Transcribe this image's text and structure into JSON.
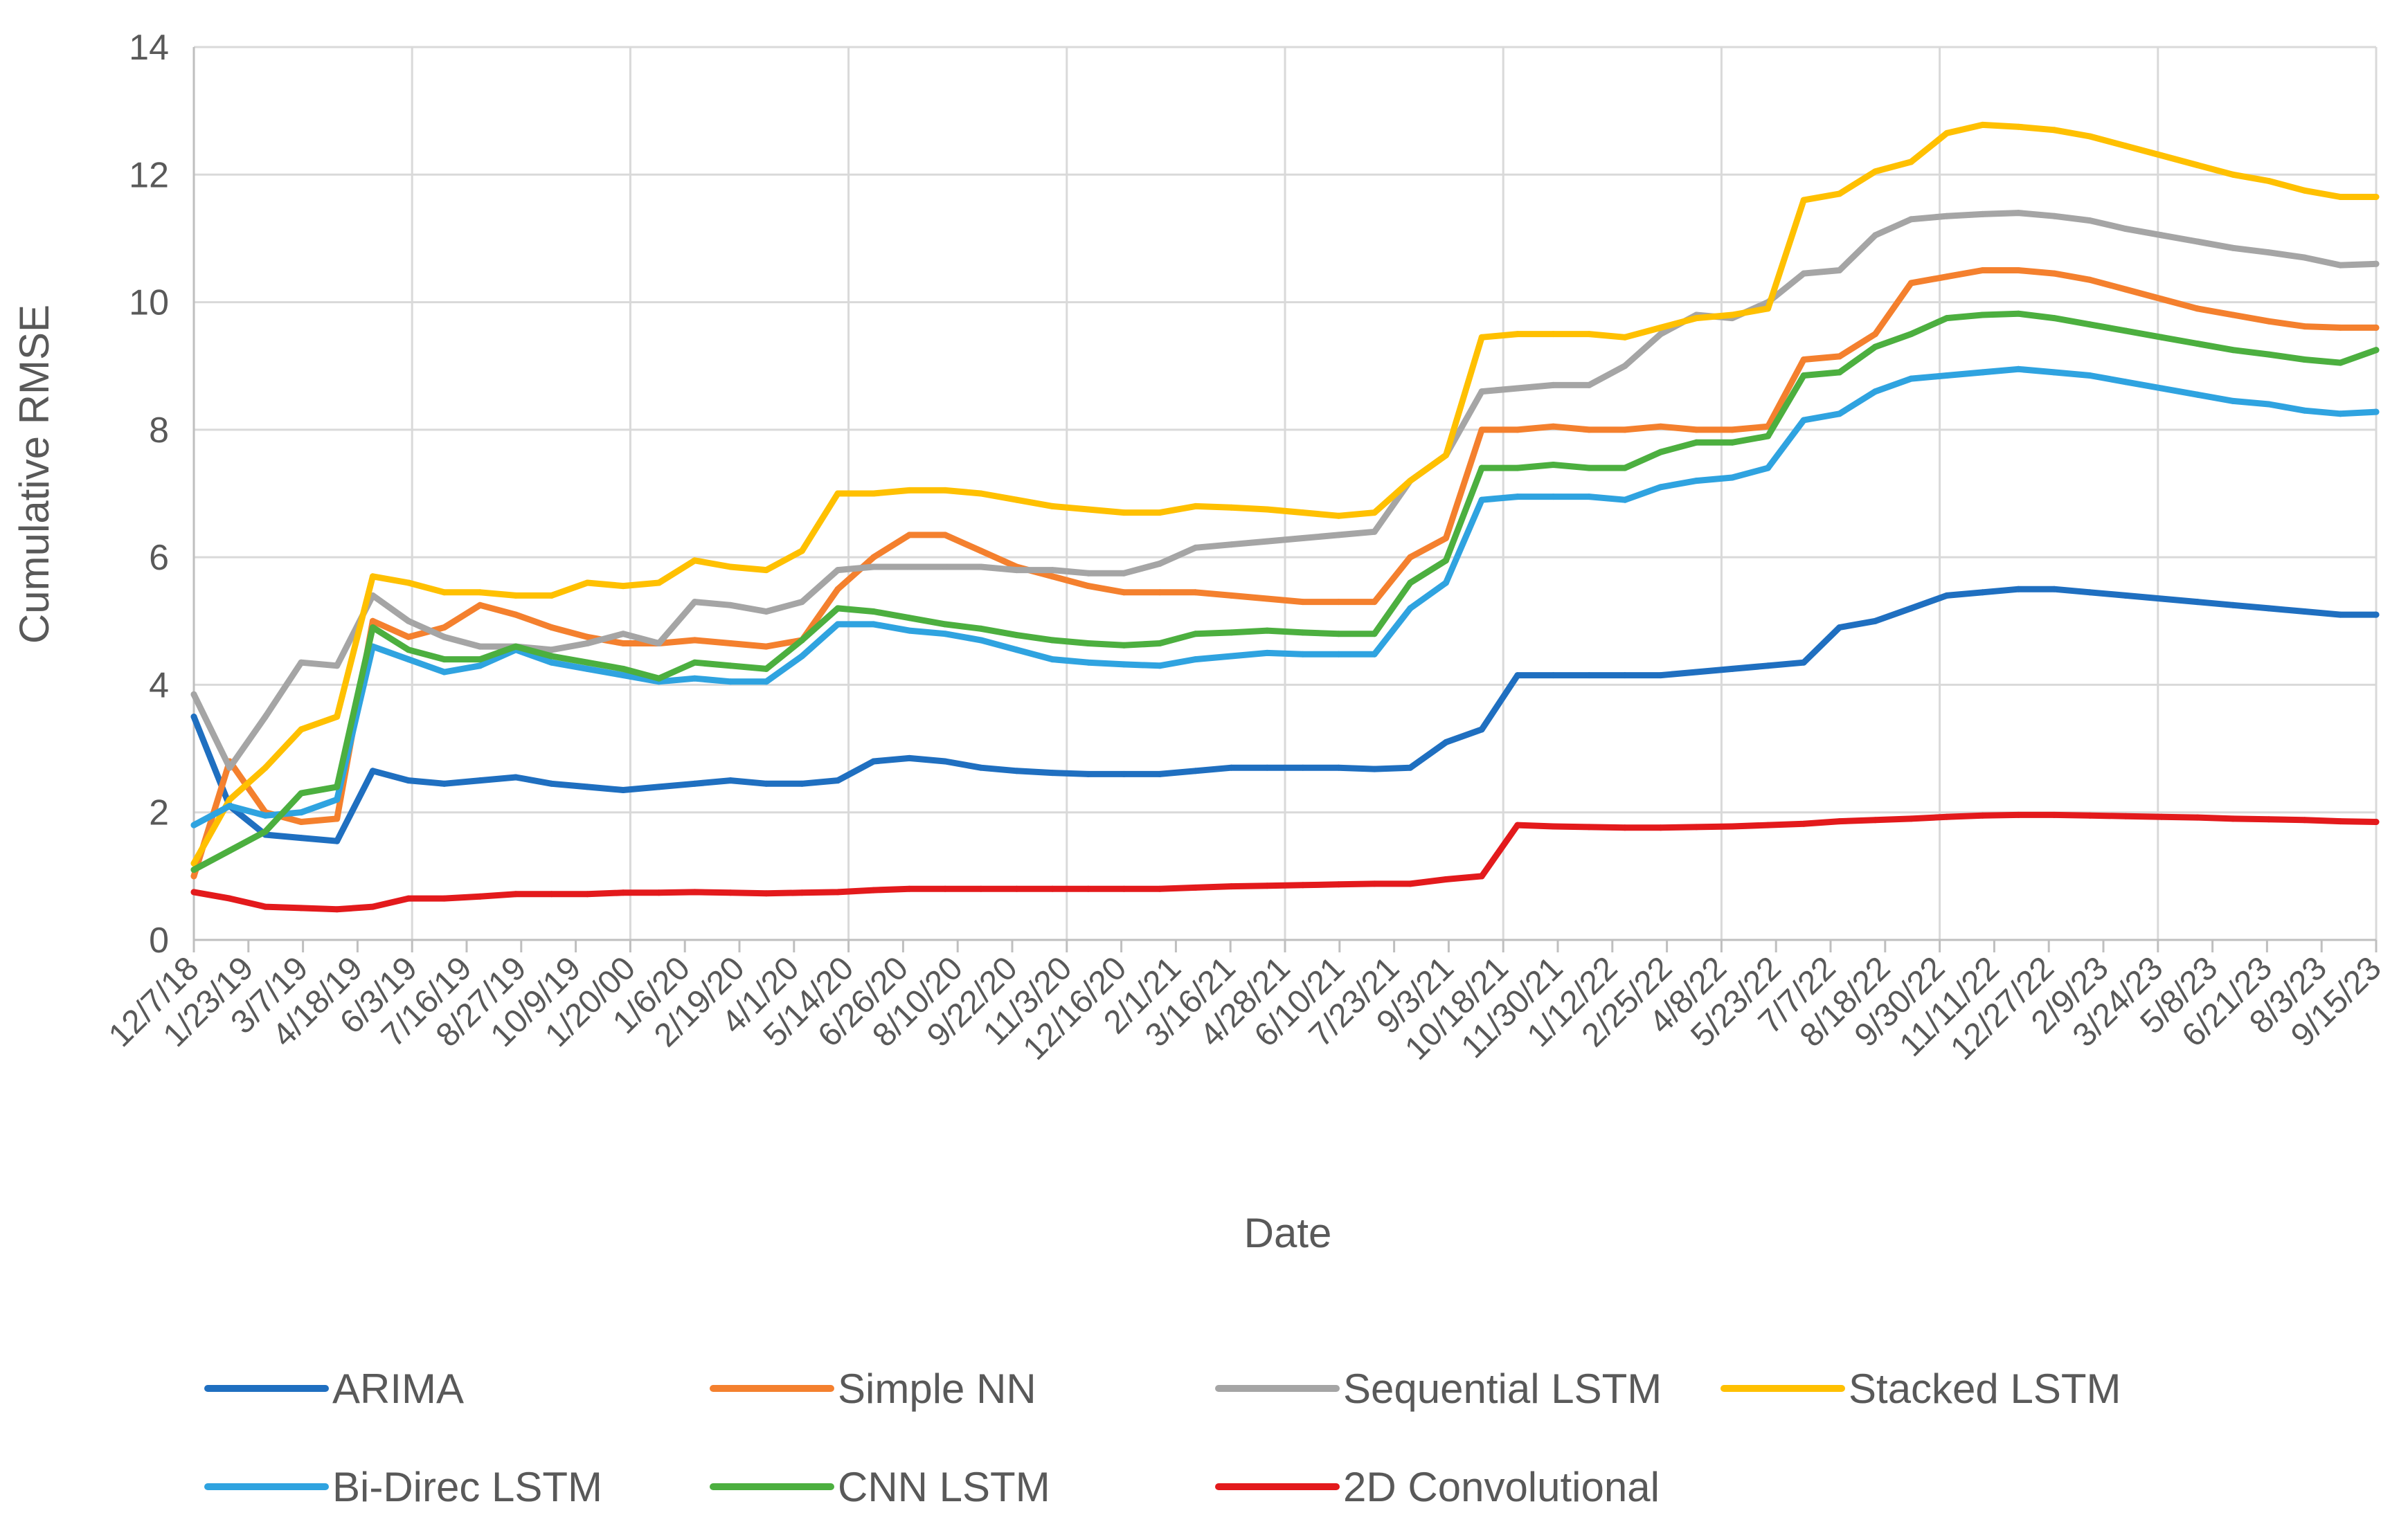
{
  "chart_data": {
    "type": "line",
    "title": "",
    "xlabel": "Date",
    "ylabel": "Cumulative RMSE",
    "ylim": [
      0,
      14
    ],
    "yticks": [
      "0",
      "2",
      "4",
      "6",
      "8",
      "10",
      "12",
      "14"
    ],
    "grid": true,
    "legend": "bottom",
    "x_tick_labels": [
      "12/7/18",
      "1/23/19",
      "3/7/19",
      "4/18/19",
      "6/3/19",
      "7/16/19",
      "8/27/19",
      "10/9/19",
      "1/20/00",
      "1/6/20",
      "2/19/20",
      "4/1/20",
      "5/14/20",
      "6/26/20",
      "8/10/20",
      "9/22/20",
      "11/3/20",
      "12/16/20",
      "2/1/21",
      "3/16/21",
      "4/28/21",
      "6/10/21",
      "7/23/21",
      "9/3/21",
      "10/18/21",
      "11/30/21",
      "1/12/22",
      "2/25/22",
      "4/8/22",
      "5/23/22",
      "7/7/22",
      "8/18/22",
      "9/30/22",
      "11/11/22",
      "12/27/22",
      "2/9/23",
      "3/24/23",
      "5/8/23",
      "6/21/23",
      "8/3/23",
      "9/15/23"
    ],
    "x": [
      "12/7/18",
      "12/21/18",
      "1/23/19",
      "2/14/19",
      "3/7/19",
      "3/28/19",
      "4/18/19",
      "5/10/19",
      "6/3/19",
      "6/25/19",
      "7/16/19",
      "8/6/19",
      "8/27/19",
      "9/18/19",
      "10/9/19",
      "11/15/19",
      "1/20/00",
      "1/6/20",
      "1/28/20",
      "2/19/20",
      "3/10/20",
      "4/1/20",
      "5/14/20",
      "6/26/20",
      "8/10/20",
      "9/22/20",
      "11/3/20",
      "12/16/20",
      "2/1/21",
      "3/16/21",
      "4/28/21",
      "6/10/21",
      "7/23/21",
      "8/13/21",
      "9/3/21",
      "9/25/21",
      "10/18/21",
      "11/9/21",
      "11/30/21",
      "12/21/21",
      "1/12/22",
      "2/25/22",
      "3/18/22",
      "4/8/22",
      "4/30/22",
      "5/23/22",
      "6/14/22",
      "7/7/22",
      "7/28/22",
      "8/18/22",
      "9/8/22",
      "9/30/22",
      "10/20/22",
      "11/11/22",
      "12/27/22",
      "2/9/23",
      "3/24/23",
      "5/8/23",
      "6/21/23",
      "8/3/23",
      "9/15/23",
      "10/5/23"
    ],
    "series": [
      {
        "name": "ARIMA",
        "color": "#1f6fc0",
        "values": [
          3.5,
          2.1,
          1.65,
          1.6,
          1.55,
          2.65,
          2.5,
          2.45,
          2.5,
          2.55,
          2.45,
          2.4,
          2.35,
          2.4,
          2.45,
          2.5,
          2.45,
          2.45,
          2.5,
          2.8,
          2.85,
          2.8,
          2.7,
          2.65,
          2.62,
          2.6,
          2.6,
          2.6,
          2.65,
          2.7,
          2.7,
          2.7,
          2.7,
          2.68,
          2.7,
          3.1,
          3.3,
          4.15,
          4.15,
          4.15,
          4.15,
          4.15,
          4.2,
          4.25,
          4.3,
          4.35,
          4.9,
          5.0,
          5.2,
          5.4,
          5.45,
          5.5,
          5.5,
          5.45,
          5.4,
          5.35,
          5.3,
          5.25,
          5.2,
          5.15,
          5.1,
          5.1
        ]
      },
      {
        "name": "Simple NN",
        "color": "#f4802e",
        "values": [
          1.0,
          2.8,
          2.0,
          1.85,
          1.9,
          5.0,
          4.75,
          4.9,
          5.25,
          5.1,
          4.9,
          4.75,
          4.65,
          4.65,
          4.7,
          4.65,
          4.6,
          4.7,
          5.5,
          6.0,
          6.35,
          6.35,
          6.1,
          5.85,
          5.7,
          5.55,
          5.45,
          5.45,
          5.45,
          5.4,
          5.35,
          5.3,
          5.3,
          5.3,
          6.0,
          6.3,
          8.0,
          8.0,
          8.05,
          8.0,
          8.0,
          8.05,
          8.0,
          8.0,
          8.05,
          9.1,
          9.15,
          9.5,
          10.3,
          10.4,
          10.5,
          10.5,
          10.45,
          10.35,
          10.2,
          10.05,
          9.9,
          9.8,
          9.7,
          9.62,
          9.6,
          9.6
        ]
      },
      {
        "name": "Sequential LSTM",
        "color": "#a5a5a5",
        "values": [
          3.85,
          2.7,
          3.5,
          4.35,
          4.3,
          5.4,
          5.0,
          4.75,
          4.6,
          4.6,
          4.55,
          4.65,
          4.8,
          4.65,
          5.3,
          5.25,
          5.15,
          5.3,
          5.8,
          5.85,
          5.85,
          5.85,
          5.85,
          5.8,
          5.8,
          5.75,
          5.75,
          5.9,
          6.15,
          6.2,
          6.25,
          6.3,
          6.35,
          6.4,
          7.2,
          7.6,
          8.6,
          8.65,
          8.7,
          8.7,
          9.0,
          9.5,
          9.8,
          9.75,
          10.0,
          10.45,
          10.5,
          11.05,
          11.3,
          11.35,
          11.38,
          11.4,
          11.35,
          11.28,
          11.15,
          11.05,
          10.95,
          10.85,
          10.78,
          10.7,
          10.58,
          10.6
        ]
      },
      {
        "name": "Stacked LSTM",
        "color": "#ffc000",
        "values": [
          1.2,
          2.2,
          2.7,
          3.3,
          3.5,
          5.7,
          5.6,
          5.45,
          5.45,
          5.4,
          5.4,
          5.6,
          5.55,
          5.6,
          5.95,
          5.85,
          5.8,
          6.1,
          7.0,
          7.0,
          7.05,
          7.05,
          7.0,
          6.9,
          6.8,
          6.75,
          6.7,
          6.7,
          6.8,
          6.78,
          6.75,
          6.7,
          6.65,
          6.7,
          7.2,
          7.6,
          9.45,
          9.5,
          9.5,
          9.5,
          9.45,
          9.6,
          9.75,
          9.8,
          9.9,
          11.6,
          11.7,
          12.05,
          12.2,
          12.65,
          12.78,
          12.75,
          12.7,
          12.6,
          12.45,
          12.3,
          12.15,
          12.0,
          11.9,
          11.75,
          11.65,
          11.65
        ]
      },
      {
        "name": "Bi-Direc LSTM",
        "color": "#2fa3e0",
        "values": [
          1.8,
          2.1,
          1.95,
          2.0,
          2.2,
          4.6,
          4.4,
          4.2,
          4.3,
          4.55,
          4.35,
          4.25,
          4.15,
          4.05,
          4.1,
          4.05,
          4.05,
          4.45,
          4.95,
          4.95,
          4.85,
          4.8,
          4.7,
          4.55,
          4.4,
          4.35,
          4.32,
          4.3,
          4.4,
          4.45,
          4.5,
          4.48,
          4.48,
          4.48,
          5.2,
          5.6,
          6.9,
          6.95,
          6.95,
          6.95,
          6.9,
          7.1,
          7.2,
          7.25,
          7.4,
          8.15,
          8.25,
          8.6,
          8.8,
          8.85,
          8.9,
          8.95,
          8.9,
          8.85,
          8.75,
          8.65,
          8.55,
          8.45,
          8.4,
          8.3,
          8.25,
          8.28
        ]
      },
      {
        "name": "CNN LSTM",
        "color": "#4caf3f",
        "values": [
          1.1,
          1.4,
          1.7,
          2.3,
          2.4,
          4.9,
          4.55,
          4.4,
          4.4,
          4.6,
          4.45,
          4.35,
          4.25,
          4.1,
          4.35,
          4.3,
          4.25,
          4.7,
          5.2,
          5.15,
          5.05,
          4.95,
          4.88,
          4.78,
          4.7,
          4.65,
          4.62,
          4.65,
          4.8,
          4.82,
          4.85,
          4.82,
          4.8,
          4.8,
          5.6,
          5.95,
          7.4,
          7.4,
          7.45,
          7.4,
          7.4,
          7.65,
          7.8,
          7.8,
          7.9,
          8.85,
          8.9,
          9.3,
          9.5,
          9.75,
          9.8,
          9.82,
          9.75,
          9.65,
          9.55,
          9.45,
          9.35,
          9.25,
          9.18,
          9.1,
          9.05,
          9.25
        ]
      },
      {
        "name": "2D Convolutional",
        "color": "#e31a1c",
        "values": [
          0.75,
          0.65,
          0.52,
          0.5,
          0.48,
          0.52,
          0.65,
          0.65,
          0.68,
          0.72,
          0.72,
          0.72,
          0.74,
          0.74,
          0.75,
          0.74,
          0.73,
          0.74,
          0.75,
          0.78,
          0.8,
          0.8,
          0.8,
          0.8,
          0.8,
          0.8,
          0.8,
          0.8,
          0.82,
          0.84,
          0.85,
          0.86,
          0.87,
          0.88,
          0.88,
          0.95,
          1.0,
          1.8,
          1.78,
          1.77,
          1.76,
          1.76,
          1.77,
          1.78,
          1.8,
          1.82,
          1.86,
          1.88,
          1.9,
          1.93,
          1.95,
          1.96,
          1.96,
          1.95,
          1.94,
          1.93,
          1.92,
          1.9,
          1.89,
          1.88,
          1.86,
          1.85
        ]
      }
    ]
  }
}
